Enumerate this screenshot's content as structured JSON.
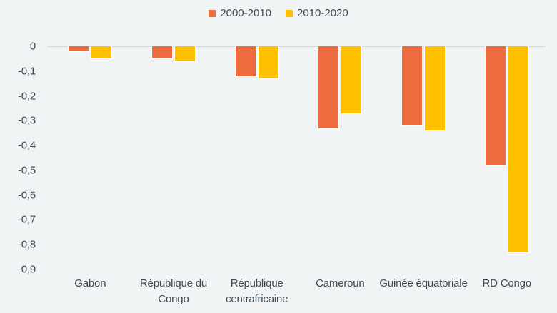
{
  "chart_data": {
    "type": "bar",
    "title": "",
    "categories": [
      "Gabon",
      "République du Congo",
      "République centrafricaine",
      "Cameroun",
      "Guinée équatoriale",
      "RD Congo"
    ],
    "series": [
      {
        "name": "2000-2010",
        "color": "#EC6B3F",
        "values": [
          -0.02,
          -0.05,
          -0.12,
          -0.33,
          -0.32,
          -0.48
        ]
      },
      {
        "name": "2010-2020",
        "color": "#FFC000",
        "values": [
          -0.05,
          -0.06,
          -0.13,
          -0.27,
          -0.34,
          -0.83
        ]
      }
    ],
    "ylim": [
      -0.9,
      0
    ],
    "y_tick_labels": [
      "0",
      "-0,1",
      "-0,2",
      "-0,3",
      "-0,4",
      "-0,5",
      "-0,6",
      "-0,7",
      "-0,8",
      "-0,9"
    ],
    "decimal_separator": ",",
    "grid": false,
    "legend_position": "top-center"
  },
  "colors": {
    "background": "#F0F4F4",
    "axis_line": "#D7DADB",
    "text": "#3E4A52",
    "series_1": "#EC6B3F",
    "series_2": "#FFC000"
  }
}
